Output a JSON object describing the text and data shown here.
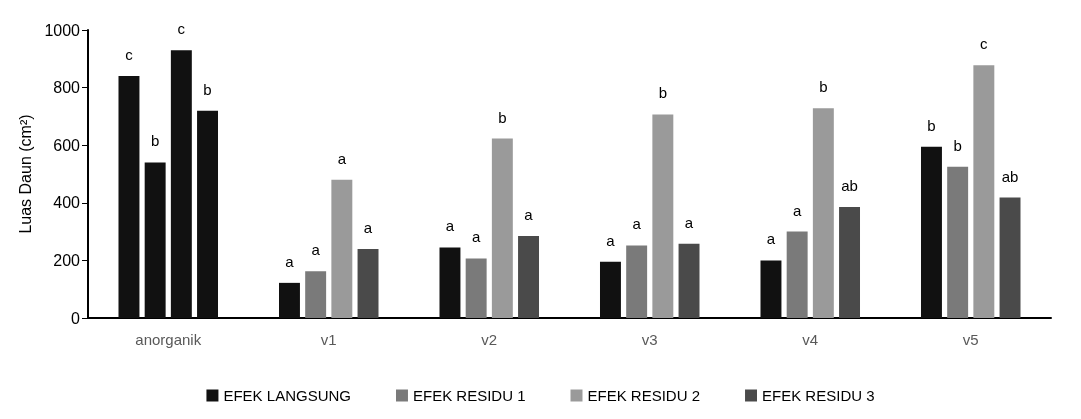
{
  "chart_data": {
    "type": "bar",
    "ylabel": "Luas Daun (cm²)",
    "categories": [
      "anorganik",
      "v1",
      "v2",
      "v3",
      "v4",
      "v5"
    ],
    "series": [
      {
        "name": "EFEK LANGSUNG",
        "color": "#111111",
        "values": [
          840,
          122,
          245,
          195,
          200,
          595
        ],
        "value_labels": [
          "c",
          "a",
          "a",
          "a",
          "a",
          "b"
        ]
      },
      {
        "name": "EFEK RESIDU 1",
        "color": "#7a7a7a",
        "colors": [
          "#111111",
          "#7a7a7a",
          "#7a7a7a",
          "#7a7a7a",
          "#7a7a7a",
          "#7a7a7a"
        ],
        "values": [
          540,
          162,
          207,
          252,
          300,
          525
        ],
        "value_labels": [
          "b",
          "a",
          "a",
          "a",
          "a",
          "b"
        ]
      },
      {
        "name": "EFEK RESIDU 2",
        "color": "#9a9a9a",
        "colors": [
          "#111111",
          "#9a9a9a",
          "#9a9a9a",
          "#9a9a9a",
          "#9a9a9a",
          "#9a9a9a"
        ],
        "values": [
          930,
          480,
          623,
          707,
          728,
          878
        ],
        "value_labels": [
          "c",
          "a",
          "b",
          "b",
          "b",
          "c"
        ]
      },
      {
        "name": "EFEK RESIDU 3",
        "color": "#4a4a4a",
        "colors": [
          "#111111",
          "#4a4a4a",
          "#4a4a4a",
          "#4a4a4a",
          "#4a4a4a",
          "#4a4a4a"
        ],
        "values": [
          720,
          240,
          285,
          258,
          385,
          418
        ],
        "value_labels": [
          "b",
          "a",
          "a",
          "a",
          "ab",
          "ab"
        ]
      }
    ],
    "ylim": [
      0,
      1000
    ],
    "yticks": [
      0,
      200,
      400,
      600,
      800,
      1000
    ],
    "grid": false,
    "legend": "bottom"
  }
}
